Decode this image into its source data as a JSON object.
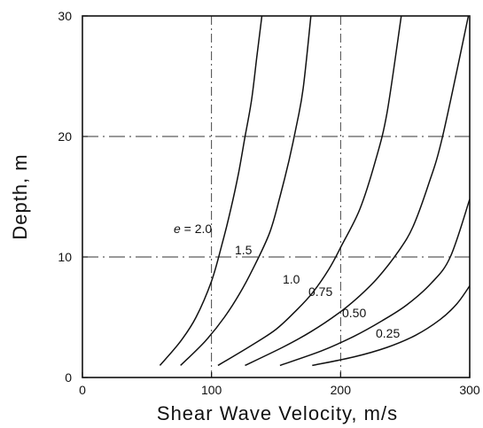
{
  "chart_data": {
    "type": "line",
    "title": "",
    "xlabel": "Shear Wave Velocity, m/s",
    "ylabel": "Depth, m",
    "xlim": [
      0,
      300
    ],
    "ylim": [
      0,
      30
    ],
    "xticks": [
      "0",
      "100",
      "200",
      "300"
    ],
    "yticks": [
      "0",
      "10",
      "20",
      "30"
    ],
    "grid": "dash-dot at x=100, 200 and y=10, 20",
    "series": [
      {
        "name": "e = 2.0",
        "label_text": "e = 2.0",
        "x": [
          60,
          76,
          88,
          100,
          108,
          115,
          121,
          126,
          131,
          135,
          139
        ],
        "y": [
          1,
          3,
          5,
          8,
          11,
          14,
          17,
          20,
          23,
          26.5,
          30
        ]
      },
      {
        "name": "1.5",
        "label_text": "1.5",
        "x": [
          76,
          95,
          110,
          122,
          132,
          145,
          153,
          160,
          166,
          171,
          177
        ],
        "y": [
          1,
          3,
          5,
          7,
          9,
          12,
          15,
          18,
          21,
          24,
          30
        ]
      },
      {
        "name": "1.0",
        "label_text": "1.0",
        "x": [
          105,
          130,
          150,
          166,
          178,
          191,
          201,
          215,
          227,
          236,
          247
        ],
        "y": [
          1,
          2.6,
          4,
          5.6,
          7,
          9,
          11,
          14,
          18,
          22,
          30
        ]
      },
      {
        "name": "0.75",
        "label_text": "0.75",
        "x": [
          126,
          155,
          177,
          198,
          213,
          229,
          245,
          256,
          268,
          279,
          299
        ],
        "y": [
          1,
          2.5,
          3.8,
          5.3,
          6.6,
          8.3,
          10.5,
          12.5,
          16,
          20,
          30
        ]
      },
      {
        "name": "0.50",
        "label_text": "0.50",
        "x": [
          153,
          185,
          210,
          232,
          251,
          270,
          285,
          300
        ],
        "y": [
          1,
          2.2,
          3.4,
          4.7,
          6,
          7.8,
          10,
          14.8
        ]
      },
      {
        "name": "0.25",
        "label_text": "0.25",
        "x": [
          178,
          210,
          236,
          258,
          277,
          290,
          300
        ],
        "y": [
          1,
          1.7,
          2.5,
          3.5,
          4.8,
          6.1,
          7.6
        ]
      }
    ]
  }
}
